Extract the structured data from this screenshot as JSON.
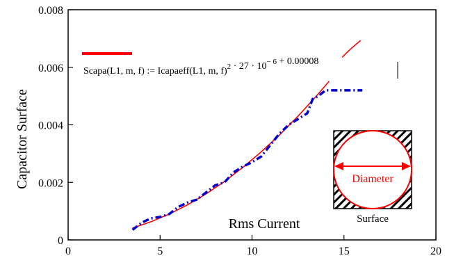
{
  "chart_data": {
    "type": "line",
    "xlabel": "Rms Current",
    "ylabel": "Capacitor Surface",
    "xlim": [
      0,
      20
    ],
    "ylim": [
      0,
      0.008
    ],
    "x_ticks": [
      "0",
      "5",
      "10",
      "15",
      "20"
    ],
    "y_ticks": [
      "0",
      "0.002",
      "0.004",
      "0.006",
      "0.008"
    ],
    "grid": false,
    "legend": "top-left",
    "series": [
      {
        "name": "Scapa(L1, m, f) := Icapaeff(L1, m, f)² · 27 · 10⁻⁶ + 0.00008",
        "style": "solid",
        "color": "#ff0000",
        "x": [
          3.5,
          4.5,
          5.5,
          6.5,
          7.5,
          8.5,
          9.5,
          10.5,
          11.5,
          12.5,
          13.5,
          14.2
        ],
        "y": [
          0.00041,
          0.00063,
          0.0009,
          0.00122,
          0.0016,
          0.00203,
          0.00252,
          0.00306,
          0.00365,
          0.0043,
          0.005,
          0.00552
        ]
      },
      {
        "name": "",
        "style": "solid",
        "color": "#ff0000",
        "x": [
          14.9,
          15.3,
          15.9
        ],
        "y": [
          0.00635,
          0.0066,
          0.00693
        ]
      },
      {
        "name": "",
        "style": "dash-dot",
        "color": "#0000cc",
        "x": [
          3.5,
          4.0,
          4.5,
          5.0,
          5.5,
          6.0,
          6.5,
          7.0,
          7.5,
          8.0,
          8.5,
          9.0,
          9.5,
          10.0,
          10.5,
          11.0,
          11.5,
          12.0,
          12.5,
          13.0,
          13.3,
          13.6,
          14.0,
          15.0,
          16.0
        ],
        "y": [
          0.00035,
          0.0006,
          0.00075,
          0.0008,
          0.0009,
          0.00115,
          0.0013,
          0.0014,
          0.00165,
          0.0019,
          0.002,
          0.00235,
          0.00255,
          0.0027,
          0.0029,
          0.0033,
          0.0037,
          0.004,
          0.0042,
          0.0044,
          0.0049,
          0.005,
          0.0052,
          0.0052,
          0.0052
        ]
      }
    ],
    "legend_swatch_color": "#ff0000"
  },
  "inset": {
    "arrow_label": "Diameter",
    "caption": "Surface",
    "circle_color": "#ff0000"
  }
}
